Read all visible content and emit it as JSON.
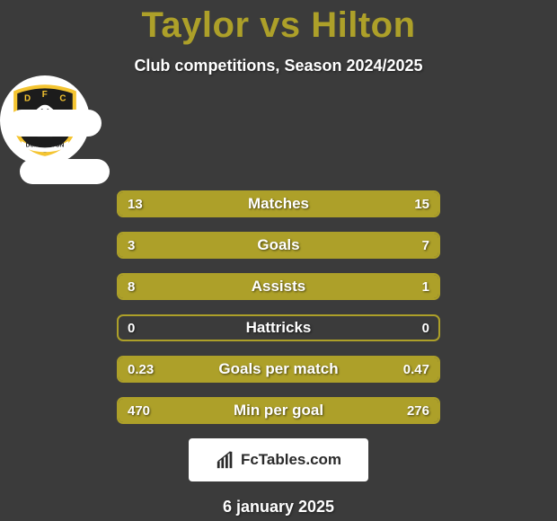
{
  "title_color": "#ada029",
  "title_text": "Taylor vs Hilton",
  "subtitle": "Club competitions, Season 2024/2025",
  "accent_color": "#ada029",
  "background_color": "#3b3b3b",
  "bars": [
    {
      "label": "Matches",
      "left": "13",
      "right": "15",
      "left_pct": 46,
      "right_pct": 54
    },
    {
      "label": "Goals",
      "left": "3",
      "right": "7",
      "left_pct": 30,
      "right_pct": 70
    },
    {
      "label": "Assists",
      "left": "8",
      "right": "1",
      "left_pct": 89,
      "right_pct": 11
    },
    {
      "label": "Hattricks",
      "left": "0",
      "right": "0",
      "left_pct": 0,
      "right_pct": 0
    },
    {
      "label": "Goals per match",
      "left": "0.23",
      "right": "0.47",
      "left_pct": 33,
      "right_pct": 67
    },
    {
      "label": "Min per goal",
      "left": "470",
      "right": "276",
      "left_pct": 37,
      "right_pct": 63
    }
  ],
  "footer_brand": "FcTables.com",
  "date": "6 january 2025",
  "crest": {
    "bg": "#1c1c1c",
    "outer_stroke": "#f4c430",
    "letters": "D F C",
    "banner_text": "DUMBARTON"
  }
}
